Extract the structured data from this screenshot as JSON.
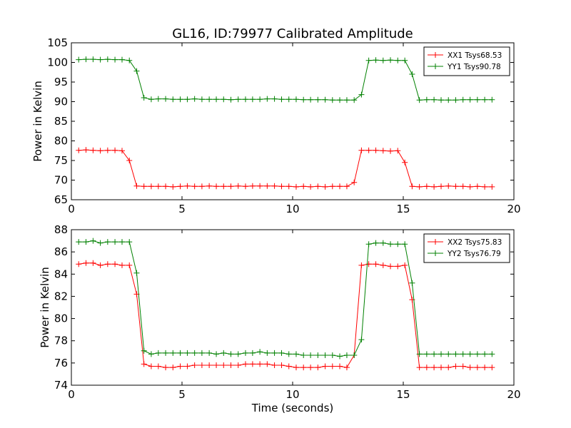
{
  "title": "GL16, ID:79977 Calibrated Amplitude",
  "xlabel": "Time (seconds)",
  "colors": {
    "red": "#ff0000",
    "green": "#008000"
  },
  "chart_data": [
    {
      "type": "line",
      "ylabel": "Power in Kelvin",
      "xlim": [
        0,
        20
      ],
      "ylim": [
        65,
        105
      ],
      "xticks": [
        0,
        5,
        10,
        15,
        20
      ],
      "yticks": [
        65,
        70,
        75,
        80,
        85,
        90,
        95,
        100,
        105
      ],
      "legend_position": "top-right",
      "x": [
        0.33,
        0.66,
        0.98,
        1.31,
        1.64,
        1.97,
        2.29,
        2.62,
        2.95,
        3.28,
        3.61,
        3.93,
        4.26,
        4.59,
        4.92,
        5.24,
        5.57,
        5.9,
        6.23,
        6.55,
        6.88,
        7.21,
        7.54,
        7.87,
        8.19,
        8.52,
        8.85,
        9.18,
        9.5,
        9.83,
        10.16,
        10.49,
        10.81,
        11.14,
        11.47,
        11.8,
        12.13,
        12.45,
        12.78,
        13.11,
        13.44,
        13.76,
        14.09,
        14.42,
        14.75,
        15.07,
        15.4,
        15.73,
        16.06,
        16.39,
        16.71,
        17.04,
        17.37,
        17.7,
        18.02,
        18.35,
        18.68,
        19.01
      ],
      "series": [
        {
          "name": "XX1 Tsys68.53",
          "color": "#ff0000",
          "values": [
            77.6,
            77.7,
            77.6,
            77.5,
            77.6,
            77.6,
            77.5,
            75.0,
            68.5,
            68.4,
            68.4,
            68.4,
            68.4,
            68.3,
            68.4,
            68.5,
            68.4,
            68.4,
            68.5,
            68.4,
            68.4,
            68.4,
            68.5,
            68.4,
            68.5,
            68.5,
            68.5,
            68.5,
            68.4,
            68.4,
            68.3,
            68.4,
            68.3,
            68.4,
            68.3,
            68.4,
            68.4,
            68.4,
            69.4,
            77.6,
            77.6,
            77.6,
            77.5,
            77.4,
            77.5,
            74.5,
            68.4,
            68.3,
            68.4,
            68.3,
            68.4,
            68.5,
            68.4,
            68.4,
            68.3,
            68.4,
            68.3,
            68.3
          ]
        },
        {
          "name": "YY1 Tsys90.78",
          "color": "#008000",
          "values": [
            100.7,
            100.8,
            100.8,
            100.7,
            100.8,
            100.7,
            100.7,
            100.5,
            97.8,
            91.0,
            90.6,
            90.7,
            90.7,
            90.6,
            90.6,
            90.6,
            90.7,
            90.6,
            90.6,
            90.6,
            90.6,
            90.5,
            90.6,
            90.6,
            90.6,
            90.6,
            90.7,
            90.7,
            90.6,
            90.6,
            90.6,
            90.5,
            90.5,
            90.5,
            90.5,
            90.4,
            90.4,
            90.4,
            90.4,
            91.8,
            100.5,
            100.6,
            100.5,
            100.6,
            100.5,
            100.5,
            97.0,
            90.4,
            90.5,
            90.5,
            90.4,
            90.4,
            90.4,
            90.5,
            90.5,
            90.5,
            90.5,
            90.5
          ]
        }
      ]
    },
    {
      "type": "line",
      "ylabel": "Power in Kelvin",
      "xlim": [
        0,
        20
      ],
      "ylim": [
        74,
        88
      ],
      "xticks": [
        0,
        5,
        10,
        15,
        20
      ],
      "yticks": [
        74,
        76,
        78,
        80,
        82,
        84,
        86,
        88
      ],
      "legend_position": "top-right",
      "x": [
        0.33,
        0.66,
        0.98,
        1.31,
        1.64,
        1.97,
        2.29,
        2.62,
        2.95,
        3.28,
        3.61,
        3.93,
        4.26,
        4.59,
        4.92,
        5.24,
        5.57,
        5.9,
        6.23,
        6.55,
        6.88,
        7.21,
        7.54,
        7.87,
        8.19,
        8.52,
        8.85,
        9.18,
        9.5,
        9.83,
        10.16,
        10.49,
        10.81,
        11.14,
        11.47,
        11.8,
        12.13,
        12.45,
        12.78,
        13.11,
        13.44,
        13.76,
        14.09,
        14.42,
        14.75,
        15.07,
        15.4,
        15.73,
        16.06,
        16.39,
        16.71,
        17.04,
        17.37,
        17.7,
        18.02,
        18.35,
        18.68,
        19.01
      ],
      "series": [
        {
          "name": "XX2 Tsys75.83",
          "color": "#ff0000",
          "values": [
            84.9,
            85.0,
            85.0,
            84.8,
            84.9,
            84.9,
            84.8,
            84.8,
            82.2,
            75.9,
            75.7,
            75.7,
            75.6,
            75.6,
            75.7,
            75.7,
            75.8,
            75.8,
            75.8,
            75.8,
            75.8,
            75.8,
            75.8,
            75.9,
            75.9,
            75.9,
            75.9,
            75.8,
            75.8,
            75.7,
            75.6,
            75.6,
            75.6,
            75.6,
            75.7,
            75.7,
            75.7,
            75.6,
            76.7,
            84.8,
            84.9,
            84.9,
            84.8,
            84.7,
            84.7,
            84.8,
            81.7,
            75.6,
            75.6,
            75.6,
            75.6,
            75.6,
            75.7,
            75.7,
            75.6,
            75.6,
            75.6,
            75.6
          ]
        },
        {
          "name": "YY2 Tsys76.79",
          "color": "#008000",
          "values": [
            86.9,
            86.9,
            87.0,
            86.8,
            86.9,
            86.9,
            86.9,
            86.9,
            84.1,
            77.1,
            76.8,
            76.9,
            76.9,
            76.9,
            76.9,
            76.9,
            76.9,
            76.9,
            76.9,
            76.8,
            76.9,
            76.8,
            76.8,
            76.9,
            76.9,
            77.0,
            76.9,
            76.9,
            76.9,
            76.8,
            76.8,
            76.7,
            76.7,
            76.7,
            76.7,
            76.7,
            76.6,
            76.7,
            76.7,
            78.1,
            86.7,
            86.8,
            86.8,
            86.7,
            86.7,
            86.7,
            83.2,
            76.8,
            76.8,
            76.8,
            76.8,
            76.8,
            76.8,
            76.8,
            76.8,
            76.8,
            76.8,
            76.8
          ]
        }
      ]
    }
  ]
}
